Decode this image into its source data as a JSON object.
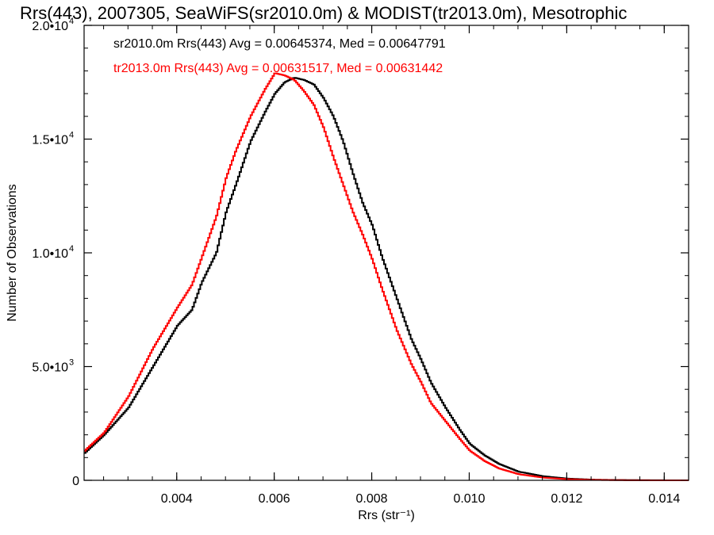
{
  "chart_data": {
    "type": "line",
    "title": "Rrs(443), 2007305, SeaWiFS(sr2010.0m) & MODIST(tr2013.0m), Mesotrophic",
    "xlabel": "Rrs (str⁻¹)",
    "ylabel": "Number of Observations",
    "xlim": [
      0.0021,
      0.0145
    ],
    "ylim": [
      0,
      20000
    ],
    "x_ticks": [
      0.004,
      0.006,
      0.008,
      0.01,
      0.012,
      0.014
    ],
    "x_tick_labels": [
      "0.004",
      "0.006",
      "0.008",
      "0.010",
      "0.012",
      "0.014"
    ],
    "y_ticks": [
      0,
      5000,
      10000,
      15000,
      20000
    ],
    "y_tick_labels": [
      {
        "mant": "0",
        "exp": ""
      },
      {
        "mant": "5.0•10",
        "exp": "3"
      },
      {
        "mant": "1.0•10",
        "exp": "4"
      },
      {
        "mant": "1.5•10",
        "exp": "4"
      },
      {
        "mant": "2.0•10",
        "exp": "4"
      }
    ],
    "grid": false,
    "step": true,
    "annotations": [
      {
        "text": "sr2010.0m Rrs(443) Avg = 0.00645374, Med = 0.00647791",
        "color": "#000000"
      },
      {
        "text": "tr2013.0m Rrs(443) Avg = 0.00631517, Med = 0.00631442",
        "color": "#ff0000"
      }
    ],
    "series": [
      {
        "color": "#000000",
        "x": [
          0.0021,
          0.0025,
          0.003,
          0.0035,
          0.004,
          0.0043,
          0.0045,
          0.0048,
          0.005,
          0.0052,
          0.0055,
          0.0058,
          0.006,
          0.0062,
          0.0064,
          0.0066,
          0.0068,
          0.007,
          0.0072,
          0.0074,
          0.0076,
          0.0078,
          0.008,
          0.0082,
          0.0085,
          0.0088,
          0.009,
          0.0092,
          0.0095,
          0.0098,
          0.01,
          0.0103,
          0.0106,
          0.011,
          0.0115,
          0.012,
          0.0125,
          0.013,
          0.0135,
          0.014,
          0.0145
        ],
        "y": [
          1200,
          2000,
          3200,
          5000,
          6800,
          7500,
          8700,
          10000,
          11800,
          13000,
          14900,
          16200,
          17000,
          17500,
          17700,
          17600,
          17400,
          16800,
          16000,
          14900,
          13500,
          12200,
          11200,
          9800,
          8000,
          6200,
          5300,
          4300,
          3200,
          2200,
          1600,
          1100,
          720,
          380,
          180,
          75,
          30,
          14,
          6,
          2,
          1
        ]
      },
      {
        "color": "#ff0000",
        "x": [
          0.0021,
          0.0025,
          0.003,
          0.0035,
          0.004,
          0.0043,
          0.0045,
          0.0048,
          0.005,
          0.0052,
          0.0055,
          0.0058,
          0.006,
          0.0062,
          0.0064,
          0.0066,
          0.0068,
          0.007,
          0.0072,
          0.0074,
          0.0076,
          0.0078,
          0.008,
          0.0082,
          0.0085,
          0.0088,
          0.009,
          0.0092,
          0.0095,
          0.0098,
          0.01,
          0.0103,
          0.0106,
          0.011,
          0.0115,
          0.012,
          0.0125,
          0.013,
          0.0135,
          0.014,
          0.0145
        ],
        "y": [
          1300,
          2100,
          3700,
          5800,
          7600,
          8600,
          9800,
          11600,
          13300,
          14500,
          16000,
          17200,
          17900,
          17800,
          17600,
          17100,
          16500,
          15500,
          14200,
          13000,
          11800,
          10800,
          9700,
          8400,
          6600,
          5100,
          4300,
          3400,
          2600,
          1800,
          1300,
          850,
          520,
          270,
          120,
          48,
          20,
          8,
          3,
          1,
          0
        ]
      }
    ]
  }
}
